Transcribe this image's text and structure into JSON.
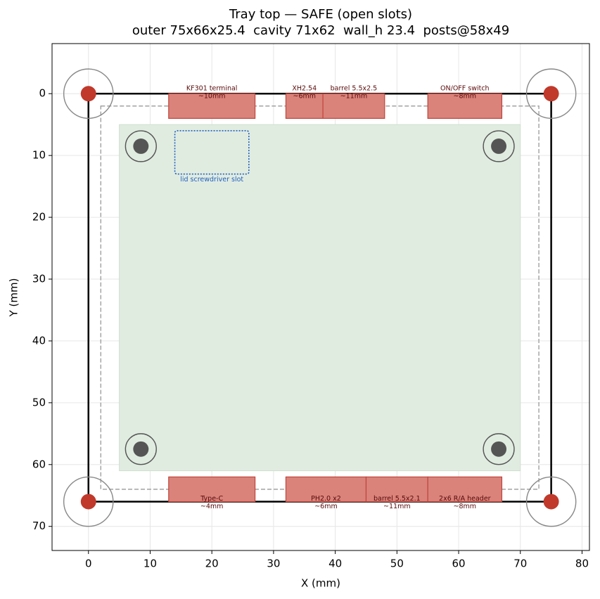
{
  "chart_data": {
    "type": "layout",
    "title": "Tray top — SAFE (open slots)",
    "subtitle": "outer 75x66x25.4  cavity 71x62  wall_h 23.4  posts@58x49",
    "x_label": "X (mm)",
    "y_label": "Y (mm)",
    "xlim": [
      -5.9,
      81.2
    ],
    "ylim": [
      -8.1,
      73.9
    ],
    "invert_y": true,
    "xticks": [
      0,
      10,
      20,
      30,
      40,
      50,
      60,
      70,
      80
    ],
    "yticks": [
      0,
      10,
      20,
      30,
      40,
      50,
      60,
      70
    ],
    "grid": true,
    "outer": {
      "x": [
        0,
        75
      ],
      "y": [
        0,
        66
      ],
      "color": "#000000"
    },
    "cavity": {
      "x": [
        2,
        73
      ],
      "y": [
        2,
        64
      ],
      "color": "#999999"
    },
    "usable": {
      "x": [
        5,
        70
      ],
      "y": [
        5,
        61
      ],
      "color": "#e1ece1"
    },
    "slot": {
      "label": "lid screwdriver slot",
      "x": [
        14,
        26
      ],
      "y": [
        6,
        13
      ],
      "color": "#1f5fbf"
    },
    "posts": {
      "points": [
        [
          8.5,
          8.5
        ],
        [
          66.5,
          8.5
        ],
        [
          8.5,
          57.5
        ],
        [
          66.5,
          57.5
        ]
      ],
      "radius": 1.25,
      "ring_radius": 2.5,
      "color": "#555555"
    },
    "corners": {
      "points": [
        [
          0,
          0
        ],
        [
          75,
          0
        ],
        [
          0,
          66
        ],
        [
          75,
          66
        ]
      ],
      "radius": 1.25,
      "ring_radius": 4,
      "color": "#c0392b"
    },
    "connector_color": "#d9837b",
    "top_connectors": [
      {
        "label": "KF301 terminal",
        "size": "~10mm",
        "x": [
          13,
          27
        ],
        "y": [
          0,
          4
        ]
      },
      {
        "label": "XH2.54",
        "size": "~6mm",
        "x": [
          32,
          38
        ],
        "y": [
          0,
          4
        ]
      },
      {
        "label": "barrel 5.5x2.5",
        "size": "~11mm",
        "x": [
          38,
          48
        ],
        "y": [
          0,
          4
        ]
      },
      {
        "label": "ON/OFF switch",
        "size": "~8mm",
        "x": [
          55,
          67
        ],
        "y": [
          0,
          4
        ]
      }
    ],
    "bottom_connectors": [
      {
        "label": "Type-C",
        "size": "~4mm",
        "x": [
          13,
          27
        ],
        "y": [
          62,
          66
        ]
      },
      {
        "label": "PH2.0 x2",
        "size": "~6mm",
        "x": [
          32,
          45
        ],
        "y": [
          62,
          66
        ]
      },
      {
        "label": "barrel 5.5x2.1",
        "size": "~11mm",
        "x": [
          45,
          55
        ],
        "y": [
          62,
          66
        ]
      },
      {
        "label": "2x6 R/A header",
        "size": "~8mm",
        "x": [
          55,
          67
        ],
        "y": [
          62,
          66
        ]
      }
    ]
  }
}
